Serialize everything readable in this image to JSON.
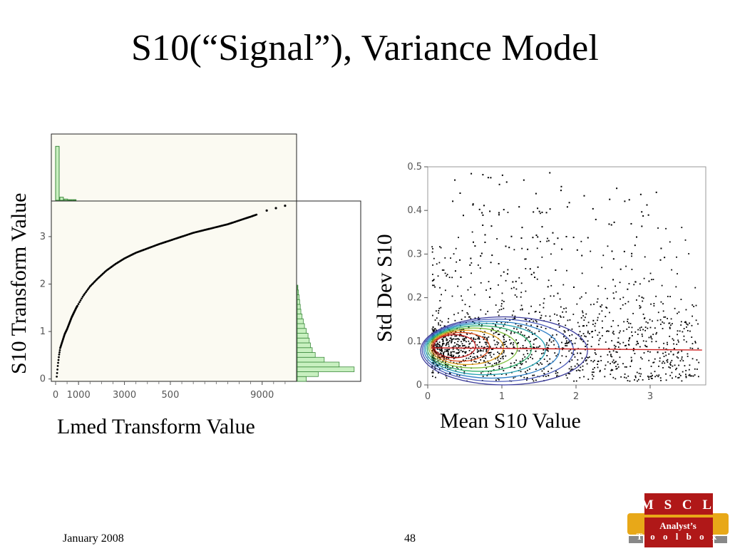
{
  "slide": {
    "title": "S10(“Signal”), Variance Model",
    "footer_date": "January 2008",
    "page_number": "48",
    "logo": {
      "line1": "M S C L",
      "line2": "Analyst’s",
      "line3": "T o o l b o x"
    }
  },
  "colors": {
    "plot_background": "#fbfaf2",
    "histogram_fill": "#c8f0c0",
    "histogram_edge": "#3c8a3c",
    "trend_line": "#d02020",
    "logo_red": "#b01818",
    "logo_gold": "#e8a818"
  },
  "chart_data": [
    {
      "type": "scatter",
      "ylabel": "S10 Transform Value",
      "xlabel": "Lmed Transform Value",
      "x_tick_labels": [
        "0",
        "1000",
        "3000",
        "500",
        "9000"
      ],
      "y_ticks": [
        0,
        1,
        2,
        3
      ],
      "xlim": [
        0,
        10500
      ],
      "ylim": [
        -0.05,
        3.75
      ],
      "x": [
        50,
        100,
        150,
        200,
        300,
        400,
        500,
        700,
        900,
        1200,
        1500,
        1800,
        2200,
        2600,
        3000,
        3500,
        4000,
        4500,
        5000,
        5500,
        6000,
        6500,
        7000,
        7500,
        8000,
        8500,
        8800,
        9200,
        9600,
        10000
      ],
      "y": [
        0.05,
        0.3,
        0.5,
        0.65,
        0.8,
        0.95,
        1.05,
        1.3,
        1.5,
        1.75,
        1.95,
        2.1,
        2.28,
        2.42,
        2.54,
        2.66,
        2.75,
        2.84,
        2.92,
        3.0,
        3.08,
        3.14,
        3.2,
        3.26,
        3.34,
        3.42,
        3.47,
        3.55,
        3.6,
        3.65
      ],
      "top_histogram": [
        0.88,
        0.05,
        0.02,
        0.01,
        0.01,
        0.0,
        0.0,
        0.0,
        0.0,
        0.0,
        0.0,
        0.0,
        0.0,
        0.0,
        0.0,
        0.0,
        0.0,
        0.0,
        0.0,
        0.0
      ],
      "right_histogram": [
        0.15,
        0.35,
        0.95,
        0.7,
        0.45,
        0.3,
        0.25,
        0.22,
        0.2,
        0.18,
        0.15,
        0.12,
        0.1,
        0.08,
        0.06,
        0.05,
        0.04,
        0.03,
        0.02,
        0.01
      ]
    },
    {
      "type": "scatter",
      "ylabel": "Std Dev S10",
      "xlabel": "Mean S10 Value",
      "x_ticks": [
        0,
        1,
        2,
        3
      ],
      "y_ticks": [
        0,
        0.1,
        0.2,
        0.3,
        0.4,
        0.5
      ],
      "xlim": [
        0,
        3.75
      ],
      "ylim": [
        0,
        0.5
      ],
      "trend_line": {
        "x": [
          0.05,
          3.7
        ],
        "y": [
          0.085,
          0.08
        ]
      },
      "density_peak": {
        "x": 0.28,
        "y": 0.09
      }
    }
  ]
}
